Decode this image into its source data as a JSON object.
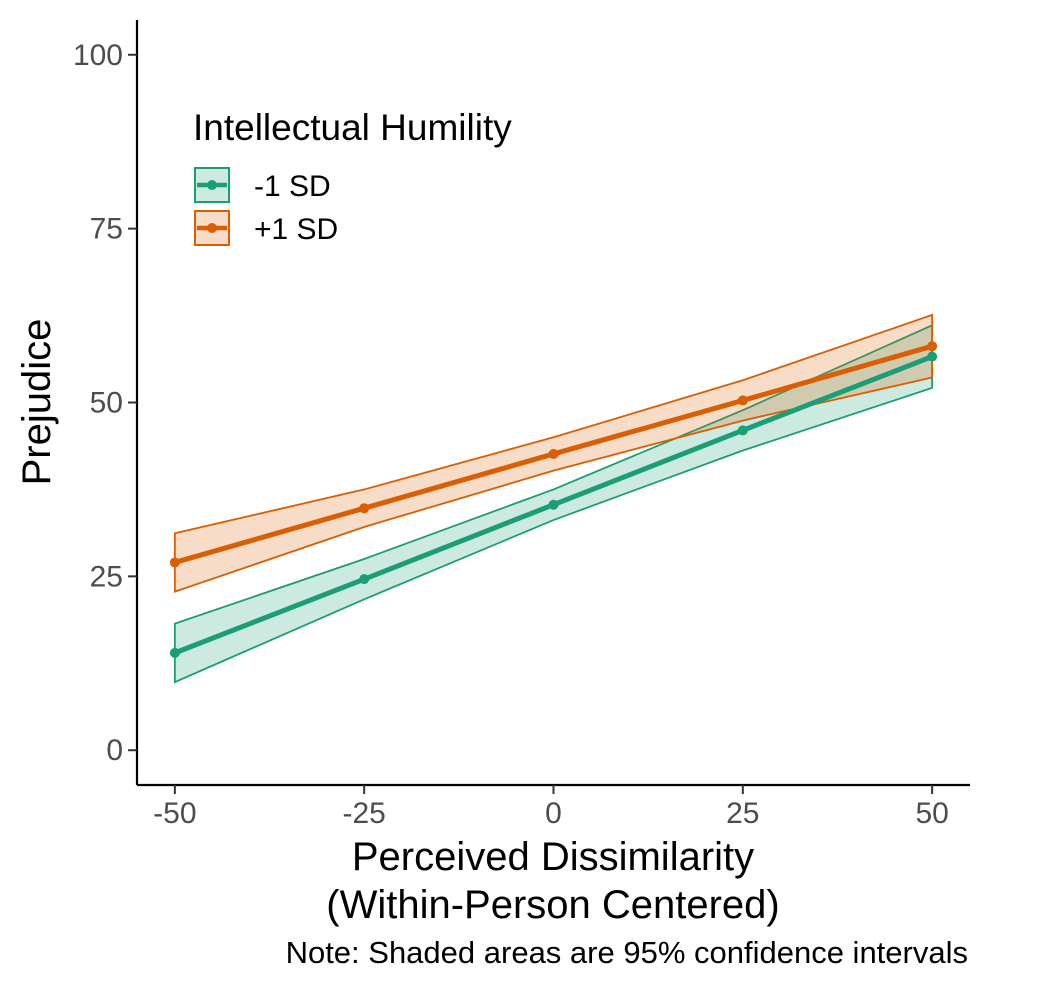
{
  "chart_data": {
    "type": "line",
    "title": "",
    "xlabel": "Perceived Dissimilarity",
    "xlabel_line2": "(Within-Person Centered)",
    "ylabel": "Prejudice",
    "note": "Note: Shaded areas are 95% confidence intervals",
    "xlim": [
      -55,
      55
    ],
    "ylim": [
      -5,
      105
    ],
    "x_ticks": [
      -50,
      -25,
      0,
      25,
      50
    ],
    "x_tick_labels": [
      "-50",
      "-25",
      "0",
      "25",
      "50"
    ],
    "y_ticks": [
      0,
      25,
      50,
      75,
      100
    ],
    "y_tick_labels": [
      "0",
      "25",
      "50",
      "75",
      "100"
    ],
    "grid": false,
    "legend": {
      "title": "Intellectual Humility",
      "position": "top-left"
    },
    "x": [
      -50,
      -25,
      0,
      25,
      50
    ],
    "series": [
      {
        "name": "-1 SD",
        "color": "#1b9e77",
        "values": [
          14.0,
          24.6,
          35.3,
          46.0,
          56.6
        ],
        "ci_lower": [
          9.8,
          21.7,
          33.1,
          43.1,
          52.1
        ],
        "ci_upper": [
          18.2,
          27.5,
          37.5,
          48.9,
          61.1
        ]
      },
      {
        "name": "+1 SD",
        "color": "#d95f02",
        "values": [
          27.0,
          34.8,
          42.6,
          50.3,
          58.1
        ],
        "ci_lower": [
          22.8,
          32.1,
          40.2,
          47.4,
          53.6
        ],
        "ci_upper": [
          31.2,
          37.5,
          45.0,
          53.2,
          62.6
        ]
      }
    ]
  }
}
